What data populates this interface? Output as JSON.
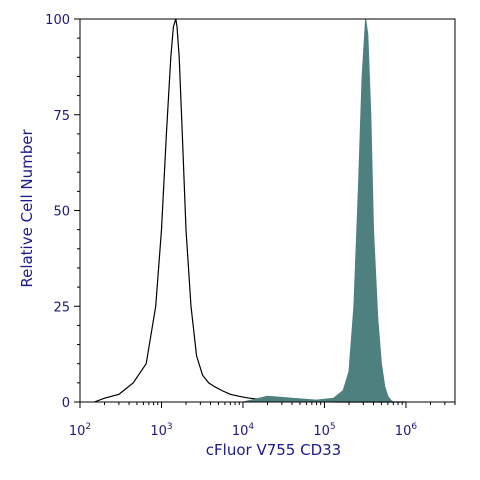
{
  "chart_data": {
    "type": "area",
    "xlabel": "cFluor V755 CD33",
    "ylabel": "Relative Cell Number",
    "x_scale": "log",
    "xlim": [
      100,
      4000000
    ],
    "ylim": [
      0,
      100
    ],
    "x_ticks": [
      {
        "base": "10",
        "exp": "2",
        "value": 100
      },
      {
        "base": "10",
        "exp": "3",
        "value": 1000
      },
      {
        "base": "10",
        "exp": "4",
        "value": 10000
      },
      {
        "base": "10",
        "exp": "5",
        "value": 100000
      },
      {
        "base": "10",
        "exp": "6",
        "value": 1000000
      }
    ],
    "y_ticks": [
      "0",
      "25",
      "50",
      "75",
      "100"
    ],
    "y_tick_values": [
      0,
      25,
      50,
      75,
      100
    ],
    "grid": false,
    "series": [
      {
        "style": "outline",
        "color": "#000000",
        "x": [
          150,
          200,
          300,
          450,
          650,
          850,
          1000,
          1150,
          1300,
          1400,
          1500,
          1550,
          1650,
          1800,
          2000,
          2300,
          2700,
          3200,
          3800,
          4500,
          5500,
          7000,
          9000,
          12000,
          20000,
          40000,
          80000,
          150000,
          250000,
          400000,
          700000,
          1000000
        ],
        "y": [
          0,
          1,
          2,
          5,
          10,
          25,
          45,
          70,
          90,
          98,
          100,
          98,
          90,
          70,
          45,
          25,
          12,
          7,
          5,
          4,
          3,
          2,
          1.5,
          1,
          0.5,
          0.2,
          0.1,
          0,
          0,
          0,
          0,
          0
        ]
      },
      {
        "style": "filled",
        "color": "#4e8080",
        "x": [
          10000,
          20000,
          40000,
          80000,
          130000,
          170000,
          200000,
          230000,
          260000,
          290000,
          320000,
          340000,
          370000,
          400000,
          450000,
          500000,
          550000,
          600000,
          650000,
          700000
        ],
        "y": [
          0,
          1.5,
          1,
          0.5,
          1,
          3,
          8,
          25,
          55,
          85,
          100,
          96,
          75,
          45,
          22,
          10,
          4,
          1.5,
          0.5,
          0
        ]
      }
    ]
  }
}
